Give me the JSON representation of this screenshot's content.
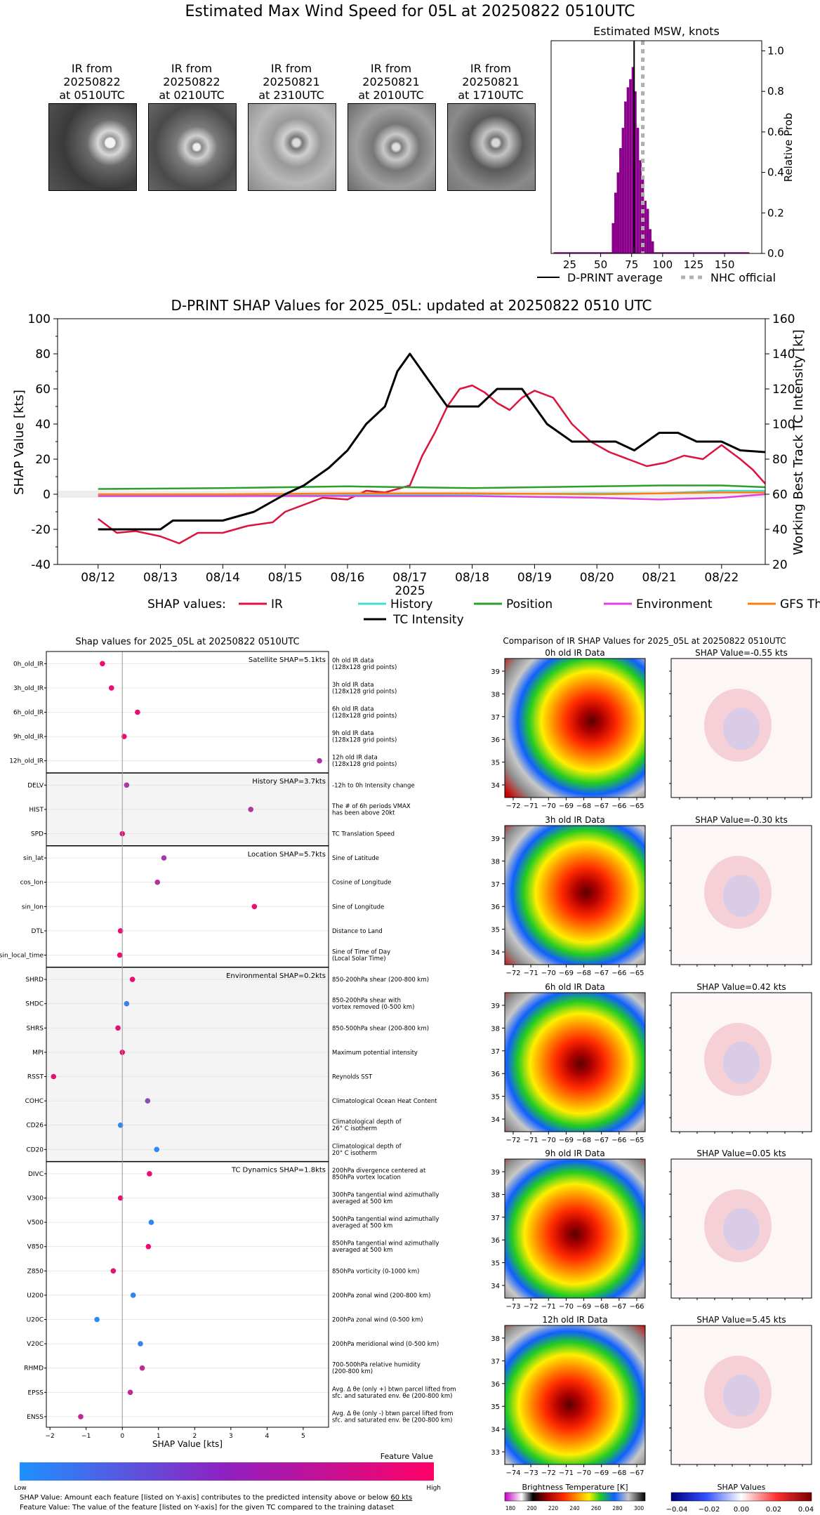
{
  "title": "Estimated Max Wind Speed for 05L at 20250822 0510UTC",
  "satellite_images": [
    {
      "label": "IR from\n20250822\nat 0510UTC"
    },
    {
      "label": "IR from\n20250822\nat 0210UTC"
    },
    {
      "label": "IR from\n20250821\nat 2310UTC"
    },
    {
      "label": "IR from\n20250821\nat 2010UTC"
    },
    {
      "label": "IR from\n20250821\nat 1710UTC"
    }
  ],
  "chart_data": [
    {
      "type": "bar",
      "title": "Estimated MSW, knots",
      "xlabel": "",
      "ylabel": "Relative Prob",
      "xlim": [
        10,
        180
      ],
      "ylim": [
        0,
        1.05
      ],
      "x_ticks": [
        25,
        50,
        75,
        100,
        125,
        150
      ],
      "y_ticks": [
        "0.0",
        "0.2",
        "0.4",
        "0.6",
        "0.8",
        "1.0"
      ],
      "color": "#8b008b",
      "bins": [
        {
          "x": 60,
          "h": 0.15
        },
        {
          "x": 62,
          "h": 0.3
        },
        {
          "x": 64,
          "h": 0.4
        },
        {
          "x": 66,
          "h": 0.52
        },
        {
          "x": 68,
          "h": 0.62
        },
        {
          "x": 70,
          "h": 0.75
        },
        {
          "x": 72,
          "h": 0.82
        },
        {
          "x": 74,
          "h": 0.86
        },
        {
          "x": 76,
          "h": 0.92
        },
        {
          "x": 78,
          "h": 0.8
        },
        {
          "x": 80,
          "h": 0.62
        },
        {
          "x": 82,
          "h": 0.46
        },
        {
          "x": 84,
          "h": 0.38
        },
        {
          "x": 86,
          "h": 0.26
        },
        {
          "x": 88,
          "h": 0.22
        },
        {
          "x": 90,
          "h": 0.12
        },
        {
          "x": 92,
          "h": 0.06
        }
      ],
      "d_print_average": 77,
      "nhc_official": 84,
      "legend": [
        {
          "name": "D-PRINT average",
          "style": "solid"
        },
        {
          "name": "NHC official",
          "style": "dotted"
        }
      ]
    },
    {
      "type": "line",
      "title": "D-PRINT SHAP Values for 2025_05L: updated at 20250822 0510 UTC",
      "xlabel": "2025",
      "ylabel": "SHAP Value [kts]",
      "y2label": "Working Best Track TC Intensity [kt]",
      "ylim": [
        -40,
        100
      ],
      "y2lim": [
        20,
        160
      ],
      "y_ticks": [
        -40,
        -20,
        0,
        20,
        40,
        60,
        80,
        100
      ],
      "y2_ticks": [
        20,
        40,
        60,
        80,
        100,
        120,
        140,
        160
      ],
      "x_tick_labels": [
        "08/12",
        "08/13",
        "08/14",
        "08/15",
        "08/16",
        "08/17",
        "08/18",
        "08/19",
        "08/20",
        "08/21",
        "08/22"
      ],
      "legend_prefix": "SHAP values:",
      "series": [
        {
          "name": "IR",
          "color": "#dc143c",
          "x": [
            0,
            0.3,
            0.6,
            1.0,
            1.3,
            1.6,
            2.0,
            2.4,
            2.8,
            3.0,
            3.3,
            3.6,
            4.0,
            4.3,
            4.6,
            5.0,
            5.2,
            5.4,
            5.6,
            5.8,
            6.0,
            6.2,
            6.4,
            6.6,
            6.8,
            7.0,
            7.3,
            7.6,
            7.9,
            8.2,
            8.5,
            8.8,
            9.1,
            9.4,
            9.7,
            10.0,
            10.3,
            10.5,
            10.7
          ],
          "y": [
            -14,
            -22,
            -21,
            -24,
            -28,
            -22,
            -22,
            -18,
            -16,
            -10,
            -6,
            -2,
            -3,
            2,
            1,
            5,
            22,
            35,
            50,
            60,
            62,
            58,
            52,
            48,
            55,
            59,
            55,
            40,
            30,
            24,
            20,
            16,
            18,
            22,
            20,
            28,
            20,
            14,
            6
          ]
        },
        {
          "name": "History",
          "color": "#40e0d0",
          "x": [
            0,
            2,
            4,
            6,
            8,
            9,
            10,
            10.7
          ],
          "y": [
            -1,
            -1,
            -0.5,
            0,
            0.5,
            0.5,
            2,
            2
          ]
        },
        {
          "name": "Position",
          "color": "#2ca02c",
          "x": [
            0,
            2,
            4,
            6,
            8,
            9,
            10,
            10.7
          ],
          "y": [
            3,
            3.5,
            4.5,
            3.5,
            4.5,
            5,
            5,
            4
          ]
        },
        {
          "name": "Environment",
          "color": "#e040e0",
          "x": [
            0,
            2,
            4,
            6,
            8,
            9,
            10,
            10.7
          ],
          "y": [
            -1,
            -1,
            -1,
            -1,
            -2,
            -3,
            -2,
            0
          ]
        },
        {
          "name": "GFS Thermo",
          "color": "#ff7f0e",
          "x": [
            0,
            2,
            4,
            6,
            8,
            9,
            10,
            10.7
          ],
          "y": [
            0,
            0,
            0.5,
            0.5,
            0,
            0.5,
            1,
            1
          ]
        },
        {
          "name": "TC Intensity",
          "color": "#000000",
          "axis": "right",
          "x": [
            0,
            1.0,
            1.2,
            2.0,
            2.5,
            3.0,
            3.3,
            3.7,
            4.0,
            4.3,
            4.6,
            4.8,
            5.0,
            5.3,
            5.6,
            5.8,
            6.1,
            6.4,
            6.8,
            7.2,
            7.6,
            8.0,
            8.3,
            8.6,
            9.0,
            9.3,
            9.6,
            10.0,
            10.3,
            10.7
          ],
          "y": [
            40,
            40,
            45,
            45,
            50,
            60,
            65,
            75,
            85,
            100,
            110,
            130,
            140,
            125,
            110,
            110,
            110,
            120,
            120,
            100,
            90,
            90,
            90,
            85,
            95,
            95,
            90,
            90,
            85,
            84
          ]
        }
      ]
    },
    {
      "type": "scatter",
      "title": "Shap values for 2025_05L at 20250822 0510UTC",
      "xlabel": "SHAP Value [kts]",
      "xlim": [
        -2.1,
        5.7
      ],
      "x_ticks": [
        -2,
        -1,
        0,
        1,
        2,
        3,
        4,
        5
      ],
      "colorbar": {
        "title": "Feature Value",
        "low": "Low",
        "high": "High"
      },
      "groups": [
        {
          "label": "Satellite SHAP=5.1kts",
          "shaded": false,
          "features": [
            {
              "name": "0h_old_IR",
              "desc": "0h old IR data\n(128x128 grid points)",
              "value": -0.55,
              "level": 0.95
            },
            {
              "name": "3h_old_IR",
              "desc": "3h old IR data\n(128x128 grid points)",
              "value": -0.3,
              "level": 0.9
            },
            {
              "name": "6h_old_IR",
              "desc": "6h old IR data\n(128x128 grid points)",
              "value": 0.42,
              "level": 0.9
            },
            {
              "name": "9h_old_IR",
              "desc": "9h old IR data\n(128x128 grid points)",
              "value": 0.05,
              "level": 0.92
            },
            {
              "name": "12h_old_IR",
              "desc": "12h old IR data\n(128x128 grid points)",
              "value": 5.45,
              "level": 0.62
            }
          ]
        },
        {
          "label": "History SHAP=3.7kts",
          "shaded": true,
          "features": [
            {
              "name": "DELV",
              "desc": "-12h to 0h Intensity change",
              "value": 0.12,
              "level": 0.6
            },
            {
              "name": "HIST",
              "desc": "The # of 6h periods VMAX\nhas been above 20kt",
              "value": 3.55,
              "level": 0.62
            },
            {
              "name": "SPD",
              "desc": "TC Translation Speed",
              "value": 0.0,
              "level": 0.88
            }
          ]
        },
        {
          "label": "Location SHAP=5.7kts",
          "shaded": false,
          "features": [
            {
              "name": "sin_lat",
              "desc": "Sine of Latitude",
              "value": 1.15,
              "level": 0.58
            },
            {
              "name": "cos_lon",
              "desc": "Cosine of Longitude",
              "value": 0.97,
              "level": 0.65
            },
            {
              "name": "sin_lon",
              "desc": "Sine of Longitude",
              "value": 3.65,
              "level": 0.92
            },
            {
              "name": "DTL",
              "desc": "Distance to Land",
              "value": -0.05,
              "level": 0.95
            },
            {
              "name": "sin_local_time",
              "desc": "Sine of Time of Day\n(Local Solar Time)",
              "value": -0.07,
              "level": 0.93
            }
          ]
        },
        {
          "label": "Environmental SHAP=0.2kts",
          "shaded": true,
          "features": [
            {
              "name": "SHRD",
              "desc": "850-200hPa shear (200-800 km)",
              "value": 0.28,
              "level": 0.92
            },
            {
              "name": "SHDC",
              "desc": "850-200hPa shear with\nvortex removed (0-500 km)",
              "value": 0.12,
              "level": 0.12
            },
            {
              "name": "SHRS",
              "desc": "850-500hPa shear (200-800 km)",
              "value": -0.12,
              "level": 0.88
            },
            {
              "name": "MPI",
              "desc": "Maximum potential intensity",
              "value": 0.0,
              "level": 0.95
            },
            {
              "name": "RSST",
              "desc": "Reynolds SST",
              "value": -1.9,
              "level": 0.88
            },
            {
              "name": "COHC",
              "desc": "Climatological Ocean Heat Content",
              "value": 0.7,
              "level": 0.45
            },
            {
              "name": "CD26",
              "desc": "Climatological depth of\n26° C isotherm",
              "value": -0.05,
              "level": 0.05
            },
            {
              "name": "CD20",
              "desc": "Climatological depth of\n20° C isotherm",
              "value": 0.95,
              "level": 0.05
            }
          ]
        },
        {
          "label": "TC Dynamics SHAP=1.8kts",
          "shaded": false,
          "features": [
            {
              "name": "DIVC",
              "desc": "200hPa divergence centered at\n850hPa vortex location",
              "value": 0.75,
              "level": 0.95
            },
            {
              "name": "V300",
              "desc": "300hPa tangential wind azimuthally\naveraged at 500 km",
              "value": -0.05,
              "level": 0.9
            },
            {
              "name": "V500",
              "desc": "500hPa tangential wind azimuthally\naveraged at 500 km",
              "value": 0.8,
              "level": 0.05
            },
            {
              "name": "V850",
              "desc": "850hPa tangential wind azimuthally\naveraged at 500 km",
              "value": 0.72,
              "level": 0.95
            },
            {
              "name": "Z850",
              "desc": "850hPa vorticity (0-1000 km)",
              "value": -0.25,
              "level": 0.88
            },
            {
              "name": "U200",
              "desc": "200hPa zonal wind (200-800 km)",
              "value": 0.3,
              "level": 0.1
            },
            {
              "name": "U20C",
              "desc": "200hPa zonal wind (0-500 km)",
              "value": -0.7,
              "level": 0.05
            },
            {
              "name": "V20C",
              "desc": "200hPa meridional wind (0-500 km)",
              "value": 0.5,
              "level": 0.1
            },
            {
              "name": "RHMD",
              "desc": "700-500hPa relative humidity\n(200-800 km)",
              "value": 0.55,
              "level": 0.7
            },
            {
              "name": "EPSS",
              "desc": "Avg. Δ θe (only +) btwn parcel lifted from\nsfc. and saturated env. θe (200-800 km)",
              "value": 0.22,
              "level": 0.7
            },
            {
              "name": "ENSS",
              "desc": "Avg. Δ θe (only -) btwn parcel lifted from\nsfc. and saturated env. θe (200-800 km)",
              "value": -1.15,
              "level": 0.72
            }
          ]
        }
      ]
    },
    {
      "type": "heatmap",
      "title": "Comparison of IR SHAP Values for 2025_05L at 20250822 0510UTC",
      "rows": [
        {
          "ir_title": "0h old IR Data",
          "shap_title": "SHAP Value=-0.55 kts",
          "x_ticks": [
            "−72",
            "−71",
            "−70",
            "−69",
            "−68",
            "−67",
            "−66",
            "−65"
          ],
          "y_ticks": [
            "39",
            "38",
            "37",
            "36",
            "35",
            "34"
          ]
        },
        {
          "ir_title": "3h old IR Data",
          "shap_title": "SHAP Value=-0.30 kts",
          "x_ticks": [
            "−72",
            "−71",
            "−70",
            "−69",
            "−68",
            "−67",
            "−66",
            "−65"
          ],
          "y_ticks": [
            "39",
            "38",
            "37",
            "36",
            "35",
            "34"
          ]
        },
        {
          "ir_title": "6h old IR Data",
          "shap_title": "SHAP Value=0.42 kts",
          "x_ticks": [
            "−72",
            "−71",
            "−70",
            "−69",
            "−68",
            "−67",
            "−66",
            "−65"
          ],
          "y_ticks": [
            "39",
            "38",
            "37",
            "36",
            "35",
            "34"
          ]
        },
        {
          "ir_title": "9h old IR Data",
          "shap_title": "SHAP Value=0.05 kts",
          "x_ticks": [
            "−73",
            "−72",
            "−71",
            "−70",
            "−69",
            "−68",
            "−67",
            "−66"
          ],
          "y_ticks": [
            "39",
            "38",
            "37",
            "36",
            "35",
            "34"
          ]
        },
        {
          "ir_title": "12h old IR Data",
          "shap_title": "SHAP Value=5.45 kts",
          "x_ticks": [
            "−74",
            "−73",
            "−72",
            "−71",
            "−70",
            "−69",
            "−68",
            "−67"
          ],
          "y_ticks": [
            "38",
            "37",
            "36",
            "35",
            "34",
            "33"
          ]
        }
      ],
      "ir_colorbar": {
        "title": "Brightness Temperature [K]",
        "ticks": [
          "180",
          "200",
          "220",
          "240",
          "260",
          "280",
          "300"
        ]
      },
      "shap_colorbar": {
        "title": "SHAP Values",
        "ticks": [
          "−0.04",
          "−0.02",
          "0.00",
          "0.02",
          "0.04"
        ]
      }
    }
  ],
  "footnotes": {
    "line1_pre": "SHAP Value: Amount each feature [listed on Y-axis] contributes to the predicted intensity above or below ",
    "line1_u": "60 kts",
    "line2": "Feature Value: The value of the feature [listed on Y-axis] for the given TC compared to the training dataset"
  }
}
